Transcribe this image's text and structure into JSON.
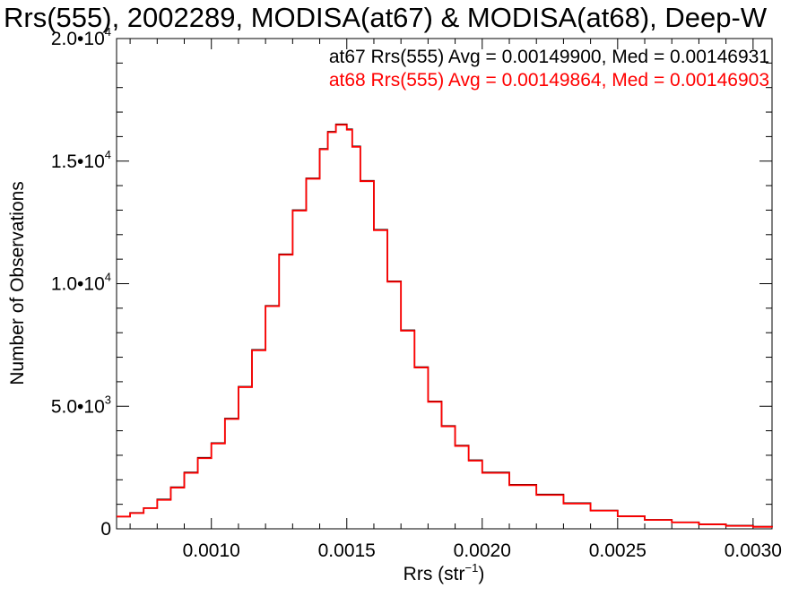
{
  "chart_data": {
    "type": "line",
    "title": "Rrs(555), 2002289, MODISA(at67) & MODISA(at68), Deep-W",
    "xlabel": "Rrs (str",
    "xlabel_sup": "−1",
    "xlabel_suffix": ")",
    "ylabel": "Number of Observations",
    "xlim": [
      0.00065,
      0.00307
    ],
    "ylim": [
      0,
      20000
    ],
    "x_ticks": [
      {
        "value": 0.001,
        "label": "0.0010"
      },
      {
        "value": 0.0015,
        "label": "0.0015"
      },
      {
        "value": 0.002,
        "label": "0.0020"
      },
      {
        "value": 0.0025,
        "label": "0.0025"
      },
      {
        "value": 0.003,
        "label": "0.0030"
      }
    ],
    "y_ticks": [
      {
        "value": 0,
        "mant": "0",
        "exp": ""
      },
      {
        "value": 5000,
        "mant": "5.0•10",
        "exp": "3"
      },
      {
        "value": 10000,
        "mant": "1.0•10",
        "exp": "4"
      },
      {
        "value": 15000,
        "mant": "1.5•10",
        "exp": "4"
      },
      {
        "value": 20000,
        "mant": "2.0•10",
        "exp": "4"
      }
    ],
    "grid": false,
    "legend_position": "top-right",
    "annotations": [
      {
        "text": "at67 Rrs(555) Avg = 0.00149900, Med = 0.00146931",
        "color": "#000000"
      },
      {
        "text": "at68 Rrs(555) Avg = 0.00149864, Med = 0.00146903",
        "color": "#ff0000"
      }
    ],
    "series": [
      {
        "color": "#000000",
        "step": true,
        "x": [
          0.00065,
          0.0007,
          0.00075,
          0.0008,
          0.00085,
          0.0009,
          0.00095,
          0.001,
          0.00105,
          0.0011,
          0.00115,
          0.0012,
          0.00125,
          0.0013,
          0.00135,
          0.0014,
          0.00143,
          0.00146,
          0.00148,
          0.0015,
          0.00152,
          0.00155,
          0.0016,
          0.00165,
          0.0017,
          0.00175,
          0.0018,
          0.00185,
          0.0019,
          0.00195,
          0.002,
          0.0021,
          0.0022,
          0.0023,
          0.0024,
          0.0025,
          0.0026,
          0.0027,
          0.0028,
          0.0029,
          0.003,
          0.00307
        ],
        "y": [
          500,
          650,
          850,
          1200,
          1700,
          2300,
          2900,
          3500,
          4500,
          5800,
          7300,
          9100,
          11200,
          13000,
          14300,
          15500,
          16200,
          16500,
          16500,
          16300,
          15600,
          14200,
          12200,
          10100,
          8100,
          6600,
          5200,
          4200,
          3400,
          2800,
          2300,
          1800,
          1400,
          1050,
          750,
          520,
          370,
          270,
          190,
          130,
          90,
          70
        ]
      },
      {
        "color": "#ff0000",
        "step": true,
        "x": [
          0.00065,
          0.0007,
          0.00075,
          0.0008,
          0.00085,
          0.0009,
          0.00095,
          0.001,
          0.00105,
          0.0011,
          0.00115,
          0.0012,
          0.00125,
          0.0013,
          0.00135,
          0.0014,
          0.00143,
          0.00146,
          0.00148,
          0.0015,
          0.00152,
          0.00155,
          0.0016,
          0.00165,
          0.0017,
          0.00175,
          0.0018,
          0.00185,
          0.0019,
          0.00195,
          0.002,
          0.0021,
          0.0022,
          0.0023,
          0.0024,
          0.0025,
          0.0026,
          0.0027,
          0.0028,
          0.0029,
          0.003,
          0.00307
        ],
        "y": [
          500,
          640,
          840,
          1180,
          1680,
          2280,
          2880,
          3480,
          4480,
          5780,
          7280,
          9080,
          11180,
          12980,
          14280,
          15480,
          16180,
          16480,
          16480,
          16280,
          15580,
          14180,
          12180,
          10080,
          8080,
          6580,
          5180,
          4180,
          3380,
          2780,
          2280,
          1780,
          1380,
          1030,
          740,
          510,
          360,
          260,
          180,
          120,
          80,
          60
        ]
      }
    ]
  }
}
